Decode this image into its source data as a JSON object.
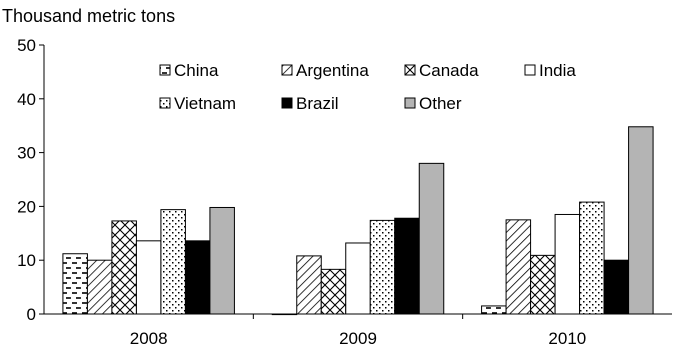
{
  "chart_data": {
    "type": "bar",
    "ylabel": "Thousand metric tons",
    "ylim": [
      0,
      50
    ],
    "yticks": [
      0,
      10,
      20,
      30,
      40,
      50
    ],
    "categories": [
      "2008",
      "2009",
      "2010"
    ],
    "grid": false,
    "legend_position": "top, inside plot",
    "series": [
      {
        "name": "China",
        "pattern": "dashes",
        "values": [
          11.2,
          0.0,
          1.5
        ]
      },
      {
        "name": "Argentina",
        "pattern": "diagonal",
        "values": [
          10.0,
          10.8,
          17.5
        ]
      },
      {
        "name": "Canada",
        "pattern": "crosshatch",
        "values": [
          17.3,
          8.3,
          10.9
        ]
      },
      {
        "name": "India",
        "pattern": "white",
        "values": [
          13.6,
          13.2,
          18.5
        ]
      },
      {
        "name": "Vietnam",
        "pattern": "dots",
        "values": [
          19.4,
          17.4,
          20.8
        ]
      },
      {
        "name": "Brazil",
        "pattern": "black",
        "values": [
          13.6,
          17.8,
          10.0
        ]
      },
      {
        "name": "Other",
        "pattern": "gray",
        "values": [
          19.8,
          28.0,
          34.8
        ]
      }
    ]
  }
}
